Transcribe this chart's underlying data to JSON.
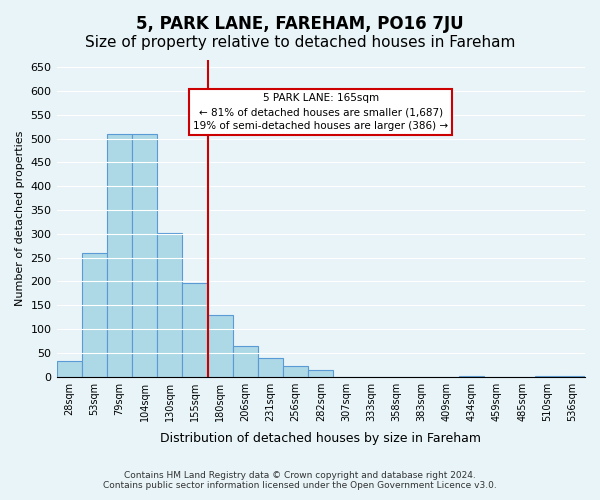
{
  "title": "5, PARK LANE, FAREHAM, PO16 7JU",
  "subtitle": "Size of property relative to detached houses in Fareham",
  "xlabel": "Distribution of detached houses by size in Fareham",
  "ylabel": "Number of detached properties",
  "bin_labels": [
    "28sqm",
    "53sqm",
    "79sqm",
    "104sqm",
    "130sqm",
    "155sqm",
    "180sqm",
    "206sqm",
    "231sqm",
    "256sqm",
    "282sqm",
    "307sqm",
    "333sqm",
    "358sqm",
    "383sqm",
    "409sqm",
    "434sqm",
    "459sqm",
    "485sqm",
    "510sqm",
    "536sqm"
  ],
  "bar_values": [
    32,
    260,
    510,
    510,
    302,
    197,
    130,
    65,
    40,
    23,
    14,
    0,
    0,
    0,
    0,
    0,
    2,
    0,
    0,
    2,
    2
  ],
  "bar_color": "#add8e6",
  "bar_edge_color": "#5b9bd5",
  "vline_x": 5.5,
  "vline_color": "#cc0000",
  "ylim": [
    0,
    665
  ],
  "yticks": [
    0,
    50,
    100,
    150,
    200,
    250,
    300,
    350,
    400,
    450,
    500,
    550,
    600,
    650
  ],
  "annotation_title": "5 PARK LANE: 165sqm",
  "annotation_line1": "← 81% of detached houses are smaller (1,687)",
  "annotation_line2": "19% of semi-detached houses are larger (386) →",
  "annotation_box_color": "#ffffff",
  "annotation_box_edge": "#cc0000",
  "footer_line1": "Contains HM Land Registry data © Crown copyright and database right 2024.",
  "footer_line2": "Contains public sector information licensed under the Open Government Licence v3.0.",
  "background_color": "#e8f4f8",
  "plot_bg_color": "#e8f4f8",
  "title_fontsize": 12,
  "subtitle_fontsize": 11
}
